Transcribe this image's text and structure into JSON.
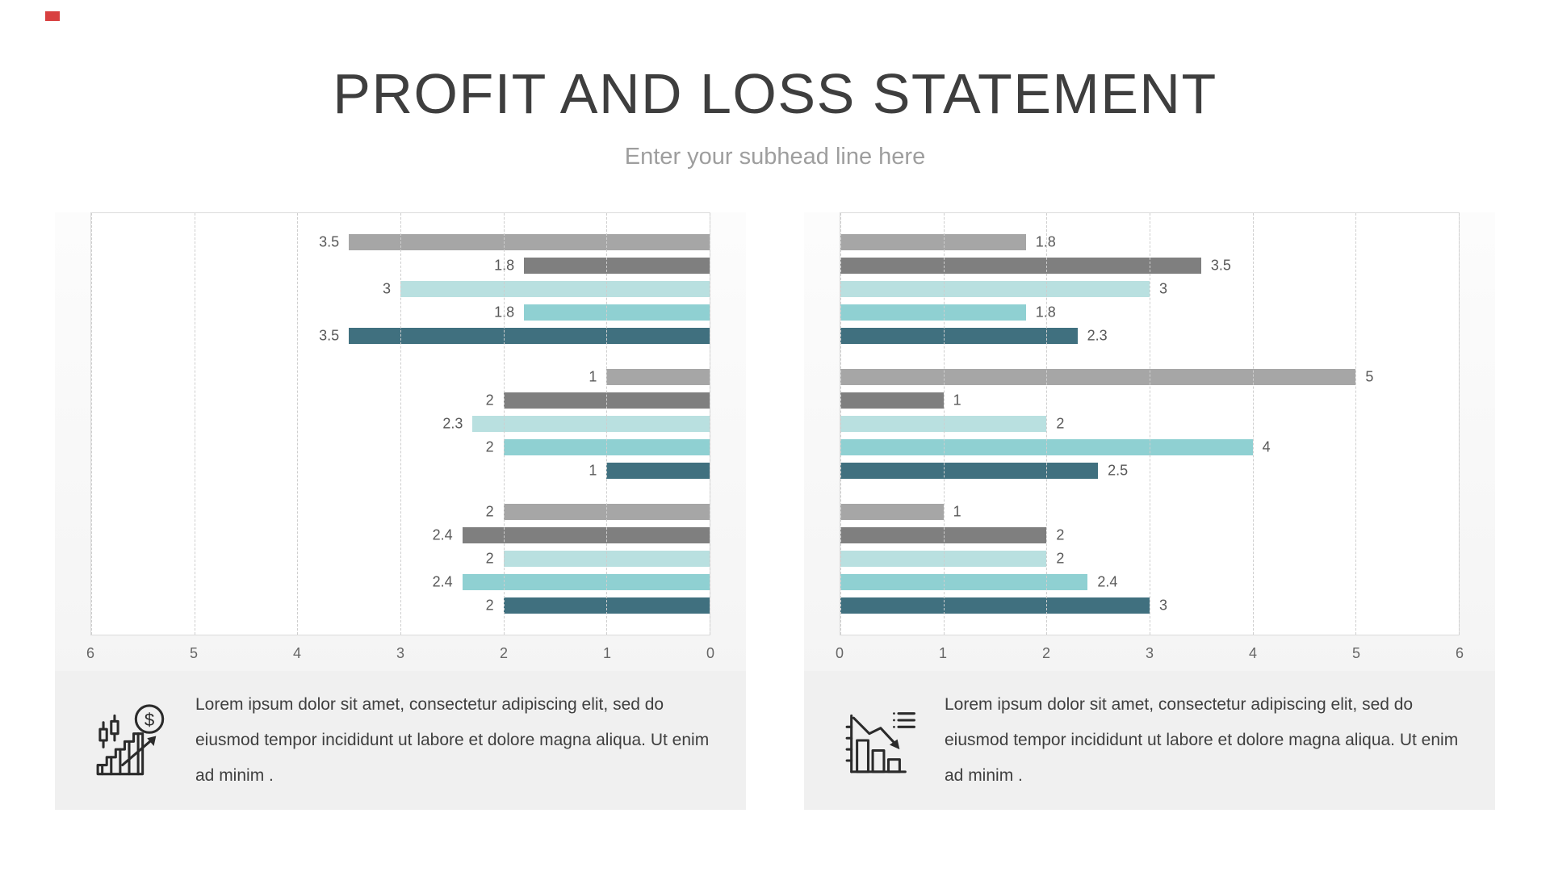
{
  "page": {
    "title": "PROFIT AND LOSS STATEMENT",
    "subtitle": "Enter your subhead line here"
  },
  "colors": {
    "series": [
      "#a6a6a6",
      "#7f7f7f",
      "#b9e0e0",
      "#8fd0d2",
      "#40707f"
    ],
    "grid": "#cecece",
    "plot_border": "#dcdcdc",
    "value_label": "#595959",
    "corner_accent": "#d84040"
  },
  "chart_data": [
    {
      "type": "bar",
      "title": "",
      "orientation": "right-to-left",
      "xlim": [
        0,
        6
      ],
      "grid": true,
      "axis_ticks": [
        "6",
        "5",
        "4",
        "3",
        "2",
        "1",
        "0"
      ],
      "series_note": "each group lists 5 bars: gray, dark-gray, light-teal, teal, dark-teal",
      "groups": [
        [
          3.5,
          1.8,
          3,
          1.8,
          3.5
        ],
        [
          1,
          2,
          2.3,
          2,
          1
        ],
        [
          2,
          2.4,
          2,
          2.4,
          2
        ]
      ]
    },
    {
      "type": "bar",
      "title": "",
      "orientation": "left-to-right",
      "xlim": [
        0,
        6
      ],
      "grid": true,
      "axis_ticks": [
        "0",
        "1",
        "2",
        "3",
        "4",
        "5",
        "6"
      ],
      "series_note": "each group lists 5 bars: gray, dark-gray, light-teal, teal, dark-teal",
      "groups": [
        [
          1.8,
          3.5,
          3,
          1.8,
          2.3
        ],
        [
          5,
          1,
          2,
          4,
          2.5
        ],
        [
          1,
          2,
          2,
          2.4,
          3
        ]
      ]
    }
  ],
  "captions": {
    "left": "Lorem ipsum dolor sit amet, consectetur adipiscing elit, sed do eiusmod tempor incididunt ut labore et dolore magna aliqua. Ut enim ad minim .",
    "right": "Lorem ipsum dolor sit amet, consectetur adipiscing elit, sed do eiusmod tempor incididunt ut labore et dolore magna aliqua. Ut enim ad minim ."
  },
  "icons": {
    "left": "candlestick-dollar-growth-icon",
    "right": "declining-bars-icon"
  }
}
